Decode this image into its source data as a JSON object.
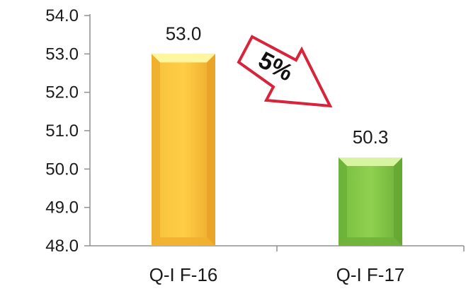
{
  "chart_data": {
    "type": "bar",
    "categories": [
      "Q-I F-16",
      "Q-I F-17"
    ],
    "values": [
      53.0,
      50.3
    ],
    "value_labels": [
      "53.0",
      "50.3"
    ],
    "ylim": [
      48.0,
      54.0
    ],
    "yticks": [
      "48.0",
      "49.0",
      "50.0",
      "51.0",
      "52.0",
      "53.0",
      "54.0"
    ],
    "title": "",
    "xlabel": "",
    "ylabel": "",
    "grid": false,
    "colors": [
      "#F5B62E",
      "#7CC443"
    ],
    "annotation": {
      "text": "5%",
      "shape": "arrow-down-right",
      "stroke_color": "#D9233A"
    }
  }
}
